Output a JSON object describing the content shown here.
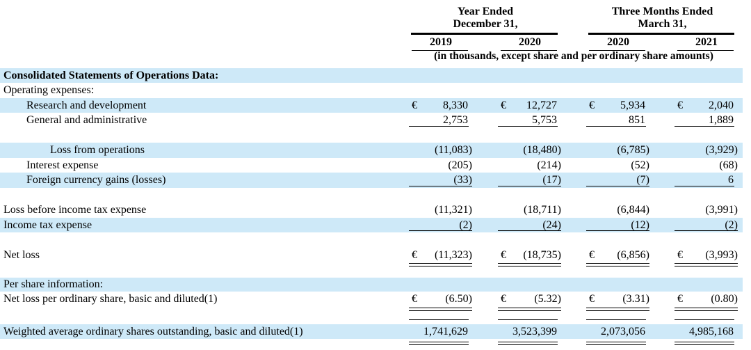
{
  "currency_symbol": "€",
  "colors": {
    "band_blue": "#cee9f8",
    "rule": "#000000",
    "text": "#000000"
  },
  "header": {
    "groups": [
      {
        "line1": "Year Ended",
        "line2": "December 31,",
        "years": [
          "2019",
          "2020"
        ]
      },
      {
        "line1": "Three Months Ended",
        "line2": "March 31,",
        "years": [
          "2020",
          "2021"
        ]
      }
    ],
    "note": "(in thousands, except share and per ordinary share amounts)"
  },
  "rows": [
    {
      "label": "Consolidated Statements of Operations Data:",
      "indent": 0,
      "bold": true,
      "currency": false,
      "values": null,
      "rule": null,
      "overline": false
    },
    {
      "label": "Operating expenses:",
      "indent": 0,
      "bold": false,
      "currency": false,
      "values": null,
      "rule": null,
      "overline": false
    },
    {
      "label": "Research and development",
      "indent": 1,
      "bold": false,
      "currency": true,
      "values": [
        "8,330",
        "12,727",
        "5,934",
        "2,040"
      ],
      "rule": null,
      "overline": false
    },
    {
      "label": "General and administrative",
      "indent": 1,
      "bold": false,
      "currency": false,
      "values": [
        "2,753",
        "5,753",
        "851",
        "1,889"
      ],
      "rule": "single",
      "overline": false
    },
    {
      "label": "Loss from operations",
      "indent": 2,
      "bold": false,
      "currency": false,
      "values": [
        "(11,083)",
        "(18,480)",
        "(6,785)",
        "(3,929)"
      ],
      "rule": null,
      "overline": false
    },
    {
      "label": "Interest expense",
      "indent": 1,
      "bold": false,
      "currency": false,
      "values": [
        "(205)",
        "(214)",
        "(52)",
        "(68)"
      ],
      "rule": null,
      "overline": false
    },
    {
      "label": "Foreign currency gains (losses)",
      "indent": 1,
      "bold": false,
      "currency": false,
      "values": [
        "(33)",
        "(17)",
        "(7)",
        "6"
      ],
      "rule": "single",
      "overline": false
    },
    {
      "label": "Loss before income tax expense",
      "indent": 0,
      "bold": false,
      "currency": false,
      "values": [
        "(11,321)",
        "(18,711)",
        "(6,844)",
        "(3,991)"
      ],
      "rule": null,
      "overline": false
    },
    {
      "label": "Income tax expense",
      "indent": 0,
      "bold": false,
      "currency": false,
      "values": [
        "(2)",
        "(24)",
        "(12)",
        "(2)"
      ],
      "rule": "single",
      "overline": false
    },
    {
      "label": "Net loss",
      "indent": 0,
      "bold": false,
      "currency": true,
      "values": [
        "(11,323)",
        "(18,735)",
        "(6,856)",
        "(3,993)"
      ],
      "rule": "double",
      "overline": false
    },
    {
      "label": "Per share information:",
      "indent": 0,
      "bold": false,
      "currency": false,
      "values": null,
      "rule": null,
      "overline": false
    },
    {
      "label": "Net loss per ordinary share, basic and diluted(1)",
      "indent": 0,
      "bold": false,
      "currency": true,
      "values": [
        "(6.50)",
        "(5.32)",
        "(3.31)",
        "(0.80)"
      ],
      "rule": "double",
      "overline": false
    },
    {
      "label": "Weighted average ordinary shares outstanding, basic and diluted(1)",
      "indent": 0,
      "bold": false,
      "currency": false,
      "values": [
        "1,741,629",
        "3,523,399",
        "2,073,056",
        "4,985,168"
      ],
      "rule": "double",
      "overline": true
    }
  ]
}
